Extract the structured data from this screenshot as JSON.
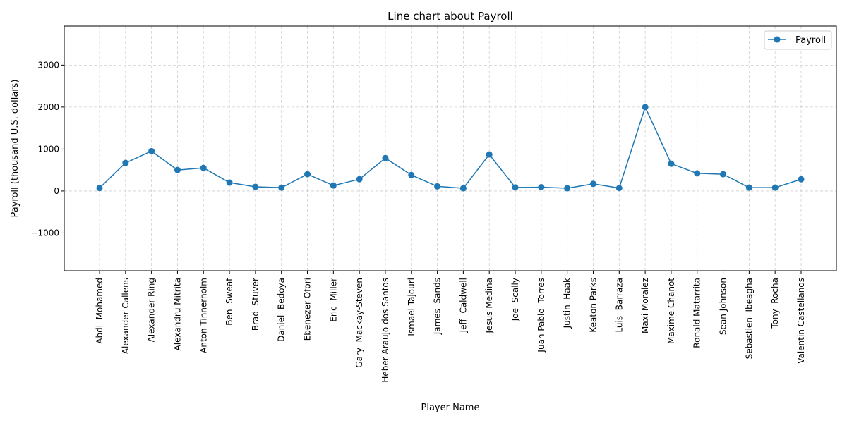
{
  "chart_data": {
    "type": "line",
    "title": "Line chart about Payroll",
    "xlabel": "Player Name",
    "ylabel": "Payroll (thousand U.S. dollars)",
    "ylim": [
      -1900,
      3930
    ],
    "yticks": [
      -1000,
      0,
      1000,
      2000,
      3000
    ],
    "grid": true,
    "legend_position": "top-right",
    "color": "#1f77b4",
    "categories": [
      "Abdi  Mohamed",
      "Alexander Callens",
      "Alexander Ring",
      "Alexandru Mitrita",
      "Anton Tinnerholm",
      "Ben  Sweat",
      "Brad  Stuver",
      "Daniel  Bedoya",
      "Ebenezer Ofori",
      "Eric  Miller",
      "Gary  Mackay-Steven",
      "Heber Araujo dos Santos",
      "Ismael Tajouri",
      "James  Sands",
      "Jeff  Caldwell",
      "Jesus Medina",
      "Joe  Scally",
      "Juan Pablo  Torres",
      "Justin  Haak",
      "Keaton Parks",
      "Luis  Barraza",
      "Maxi Moralez",
      "Maxime Chanot",
      "Ronald Matarrita",
      "Sean Johnson",
      "Sebastien  Ibeagha",
      "Tony  Rocha",
      "Valentin Castellanos"
    ],
    "series": [
      {
        "name": "Payroll",
        "values": [
          70,
          670,
          950,
          500,
          550,
          200,
          100,
          80,
          400,
          130,
          280,
          785,
          380,
          110,
          65,
          870,
          85,
          90,
          65,
          170,
          70,
          2000,
          650,
          420,
          400,
          80,
          80,
          280
        ]
      }
    ]
  }
}
